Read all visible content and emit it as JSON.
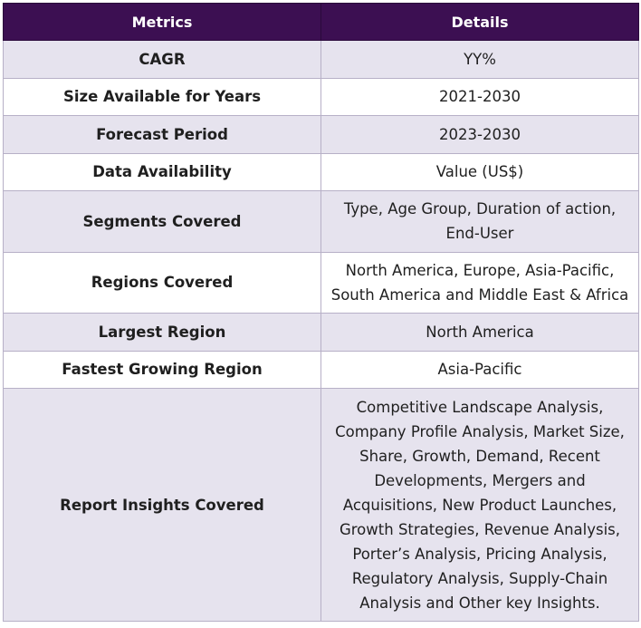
{
  "table": {
    "headers": {
      "metrics": "Metrics",
      "details": "Details"
    },
    "rows": [
      {
        "metric": "CAGR",
        "detail": "YY%"
      },
      {
        "metric": "Size Available for Years",
        "detail": "2021-2030"
      },
      {
        "metric": "Forecast Period",
        "detail": "2023-2030"
      },
      {
        "metric": "Data Availability",
        "detail": "Value (US$)"
      },
      {
        "metric": "Segments Covered",
        "detail": "Type, Age Group, Duration of action, End-User"
      },
      {
        "metric": "Regions Covered",
        "detail": "North America, Europe, Asia-Pacific, South America and Middle East & Africa"
      },
      {
        "metric": "Largest Region",
        "detail": "North America"
      },
      {
        "metric": "Fastest Growing Region",
        "detail": "Asia-Pacific"
      },
      {
        "metric": "Report Insights Covered",
        "detail": "Competitive Landscape Analysis, Company Profile Analysis, Market Size, Share, Growth, Demand, Recent Developments, Mergers and Acquisitions, New Product Launches, Growth Strategies, Revenue Analysis, Porter’s Analysis, Pricing Analysis, Regulatory Analysis, Supply-Chain Analysis and Other key Insights."
      }
    ]
  },
  "colors": {
    "header_bg": "#3c0f52",
    "header_text": "#ffffff",
    "row_shade": "#e6e3ee",
    "row_plain": "#ffffff",
    "border": "#b7b0c7"
  }
}
